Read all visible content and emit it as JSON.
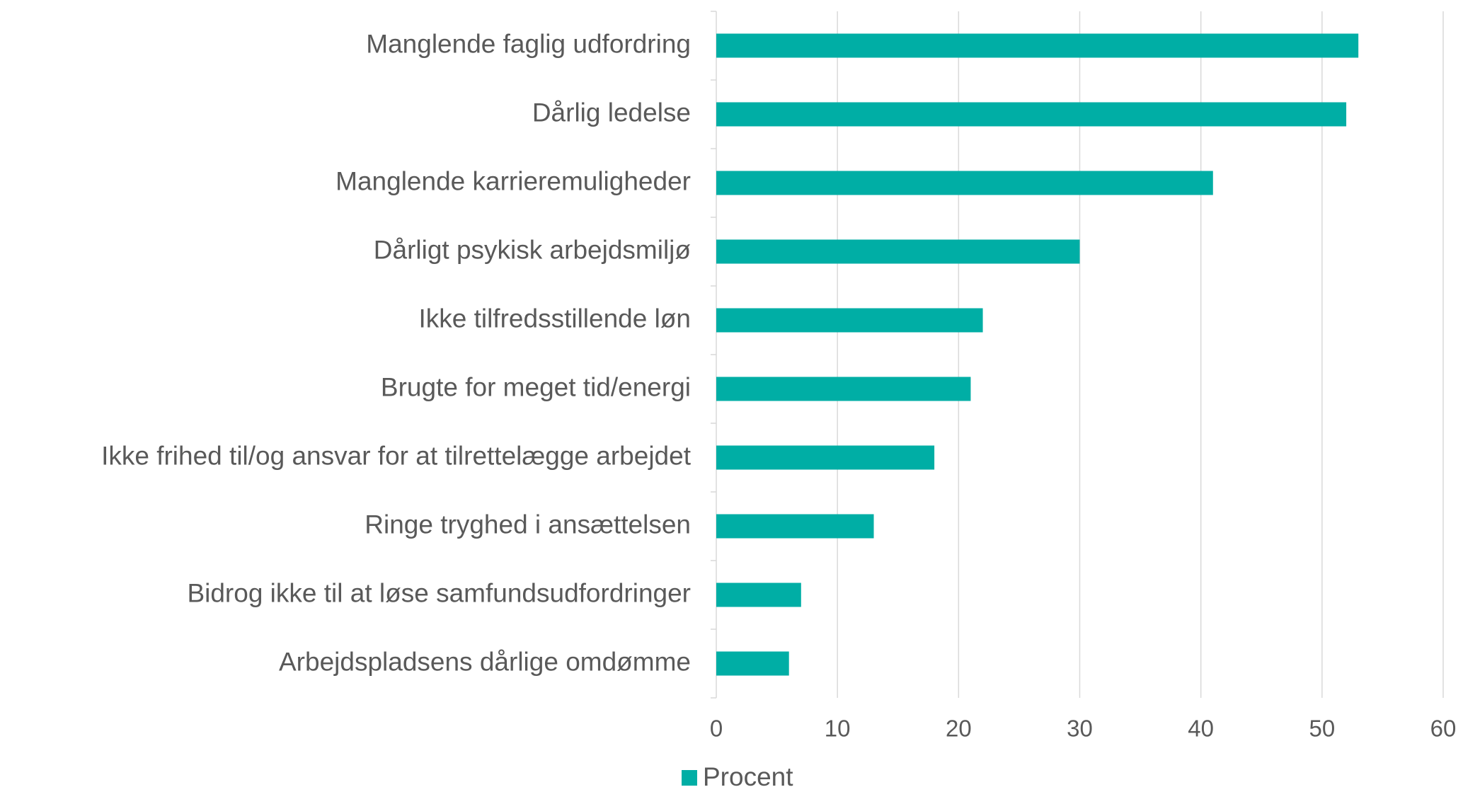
{
  "chart_data": {
    "type": "bar",
    "orientation": "horizontal",
    "categories": [
      "Manglende faglig udfordring",
      "Dårlig ledelse",
      "Manglende karrieremuligheder",
      "Dårligt psykisk arbejdsmiljø",
      "Ikke tilfredsstillende løn",
      "Brugte for meget tid/energi",
      "Ikke frihed til/og ansvar for at tilrettelægge arbejdet",
      "Ringe tryghed i ansættelsen",
      "Bidrog ikke til at løse samfundsudfordringer",
      "Arbejdspladsens dårlige omdømme"
    ],
    "series": [
      {
        "name": "Procent",
        "color": "#00aea5",
        "values": [
          53,
          52,
          41,
          30,
          22,
          21,
          18,
          13,
          7,
          6
        ]
      }
    ],
    "xlim": [
      0,
      60
    ],
    "xticks": [
      0,
      10,
      20,
      30,
      40,
      50,
      60
    ],
    "grid": true,
    "legend": "bottom"
  }
}
